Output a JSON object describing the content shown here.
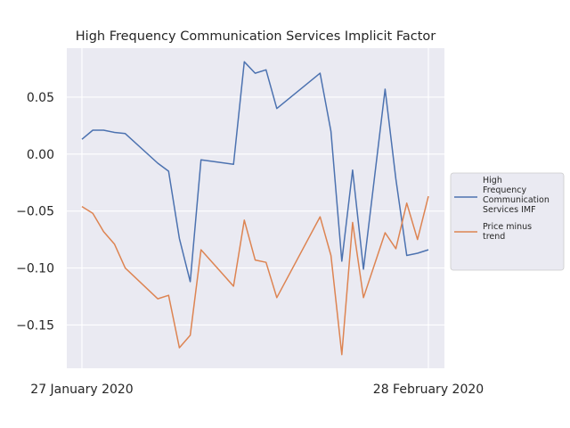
{
  "chart_data": {
    "type": "line",
    "title": "High Frequency Communication Services Implicit Factor",
    "xlabel": "",
    "ylabel": "",
    "x_tick_labels": [
      "27 January 2020",
      "28 February 2020"
    ],
    "y_ticks": [
      0.05,
      0.0,
      -0.05,
      -0.1,
      -0.15
    ],
    "y_tick_labels": [
      "0.05",
      "0.00",
      "−0.05",
      "−0.10",
      "−0.15"
    ],
    "ylim": [
      -0.188,
      0.093
    ],
    "grid": true,
    "legend_position": "right",
    "x": [
      "2020-01-27",
      "2020-01-28",
      "2020-01-29",
      "2020-01-30",
      "2020-01-31",
      "2020-02-03",
      "2020-02-04",
      "2020-02-05",
      "2020-02-06",
      "2020-02-07",
      "2020-02-10",
      "2020-02-11",
      "2020-02-12",
      "2020-02-13",
      "2020-02-14",
      "2020-02-18",
      "2020-02-19",
      "2020-02-20",
      "2020-02-21",
      "2020-02-22",
      "2020-02-24",
      "2020-02-25",
      "2020-02-26",
      "2020-02-27",
      "2020-02-28"
    ],
    "series": [
      {
        "name": "High Frequency Communication Services IMF",
        "color": "#4c72b0",
        "values": [
          0.013,
          0.021,
          0.021,
          0.019,
          0.018,
          -0.008,
          -0.015,
          -0.074,
          -0.112,
          -0.005,
          -0.009,
          0.081,
          0.071,
          0.074,
          0.04,
          0.071,
          0.02,
          -0.094,
          -0.014,
          -0.101,
          0.057,
          -0.022,
          -0.089,
          -0.087,
          -0.084
        ]
      },
      {
        "name": "Price minus trend",
        "color": "#dd8452",
        "values": [
          -0.046,
          -0.052,
          -0.068,
          -0.079,
          -0.1,
          -0.127,
          -0.124,
          -0.17,
          -0.159,
          -0.084,
          -0.116,
          -0.058,
          -0.093,
          -0.095,
          -0.126,
          -0.055,
          -0.089,
          -0.176,
          -0.06,
          -0.126,
          -0.069,
          -0.083,
          -0.043,
          -0.075,
          -0.037
        ]
      }
    ]
  }
}
